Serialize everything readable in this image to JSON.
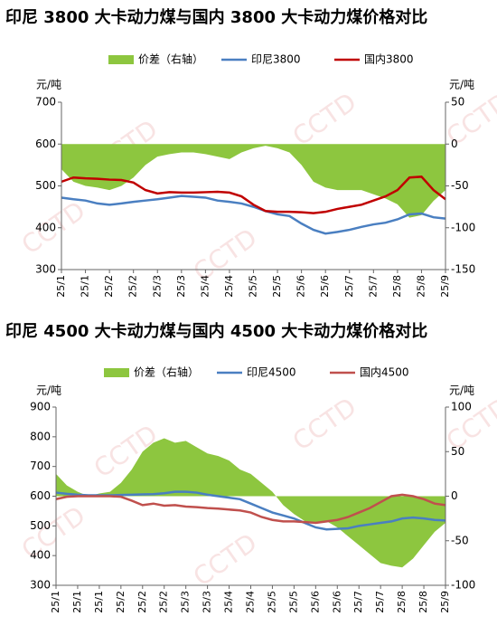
{
  "chart_data": [
    {
      "type": "line",
      "title": "印尼 3800 大卡动力煤与国内 3800 大卡动力煤价格对比",
      "y_label": "元/吨",
      "y2_label": "元/吨",
      "watermark": "CCTD",
      "categories": [
        "25/1",
        null,
        "25/1",
        null,
        "25/2",
        null,
        "25/2",
        null,
        "25/3",
        null,
        "25/3",
        null,
        "25/4",
        null,
        "25/4",
        null,
        "25/5",
        null,
        "25/5",
        null,
        "25/6",
        null,
        "25/6",
        null,
        "25/7",
        null,
        "25/7",
        null,
        "25/8",
        null,
        "25/8",
        null,
        "25/9"
      ],
      "ylim": [
        300,
        700
      ],
      "yticks": [
        300,
        400,
        500,
        600,
        700
      ],
      "y2lim": [
        -150,
        50
      ],
      "y2ticks": [
        -150,
        -100,
        -50,
        0,
        50
      ],
      "series": [
        {
          "name": "价差（右轴）",
          "type": "area",
          "axis": "y2",
          "color": "#8dc63f",
          "values": [
            -30,
            -45,
            -50,
            -52,
            -55,
            -50,
            -40,
            -25,
            -15,
            -12,
            -10,
            -10,
            -12,
            -15,
            -18,
            -10,
            -5,
            -2,
            -5,
            -10,
            -25,
            -45,
            -52,
            -55,
            -55,
            -55,
            -60,
            -65,
            -72,
            -88,
            -85,
            -68,
            -55
          ]
        },
        {
          "name": "印尼3800",
          "color": "#4a7fc1",
          "values": [
            472,
            468,
            465,
            458,
            455,
            458,
            462,
            465,
            468,
            472,
            476,
            474,
            472,
            465,
            462,
            458,
            450,
            440,
            432,
            428,
            410,
            395,
            386,
            390,
            395,
            402,
            408,
            412,
            420,
            432,
            434,
            425,
            422
          ]
        },
        {
          "name": "国内3800",
          "color": "#c00000",
          "values": [
            510,
            520,
            518,
            517,
            515,
            514,
            508,
            490,
            482,
            485,
            484,
            484,
            485,
            486,
            484,
            475,
            455,
            440,
            438,
            438,
            437,
            435,
            438,
            445,
            450,
            455,
            465,
            475,
            490,
            520,
            522,
            490,
            468
          ]
        }
      ]
    },
    {
      "type": "line",
      "title": "印尼 4500 大卡动力煤与国内 4500 大卡动力煤价格对比",
      "y_label": "元/吨",
      "y2_label": "元/吨",
      "watermark": "CCTD",
      "categories": [
        "25/1",
        null,
        "25/1",
        null,
        "25/1",
        null,
        "25/2",
        null,
        "25/2",
        null,
        "25/2",
        null,
        "25/3",
        null,
        "25/3",
        null,
        "25/4",
        null,
        "25/4",
        null,
        "25/5",
        null,
        "25/5",
        null,
        "25/6",
        null,
        "25/6",
        null,
        "25/7",
        null,
        "25/7",
        null,
        "25/8",
        null,
        "25/8",
        null,
        "25/9"
      ],
      "ylim": [
        300,
        900
      ],
      "yticks": [
        300,
        400,
        500,
        600,
        700,
        800,
        900
      ],
      "y2lim": [
        -100,
        100
      ],
      "y2ticks": [
        -100,
        -50,
        0,
        50,
        100
      ],
      "series": [
        {
          "name": "价差（右轴）",
          "type": "area",
          "axis": "y2",
          "color": "#8dc63f",
          "values": [
            25,
            12,
            5,
            0,
            3,
            5,
            15,
            30,
            50,
            60,
            65,
            60,
            62,
            55,
            48,
            45,
            40,
            30,
            25,
            15,
            5,
            -10,
            -20,
            -28,
            -30,
            -28,
            -35,
            -45,
            -55,
            -65,
            -75,
            -78,
            -80,
            -70,
            -55,
            -40,
            -30
          ]
        },
        {
          "name": "印尼4500",
          "color": "#4a7fc1",
          "values": [
            612,
            608,
            605,
            603,
            603,
            603,
            604,
            605,
            606,
            607,
            610,
            615,
            615,
            612,
            605,
            600,
            595,
            590,
            575,
            560,
            545,
            535,
            525,
            510,
            495,
            488,
            490,
            492,
            500,
            505,
            510,
            515,
            525,
            528,
            525,
            520,
            518
          ]
        },
        {
          "name": "国内4500",
          "color": "#c0504d",
          "values": [
            590,
            598,
            600,
            600,
            600,
            600,
            598,
            585,
            570,
            575,
            568,
            570,
            565,
            563,
            560,
            558,
            555,
            552,
            545,
            530,
            520,
            515,
            515,
            513,
            510,
            515,
            520,
            530,
            545,
            560,
            580,
            600,
            605,
            600,
            590,
            575,
            570
          ]
        }
      ]
    }
  ]
}
